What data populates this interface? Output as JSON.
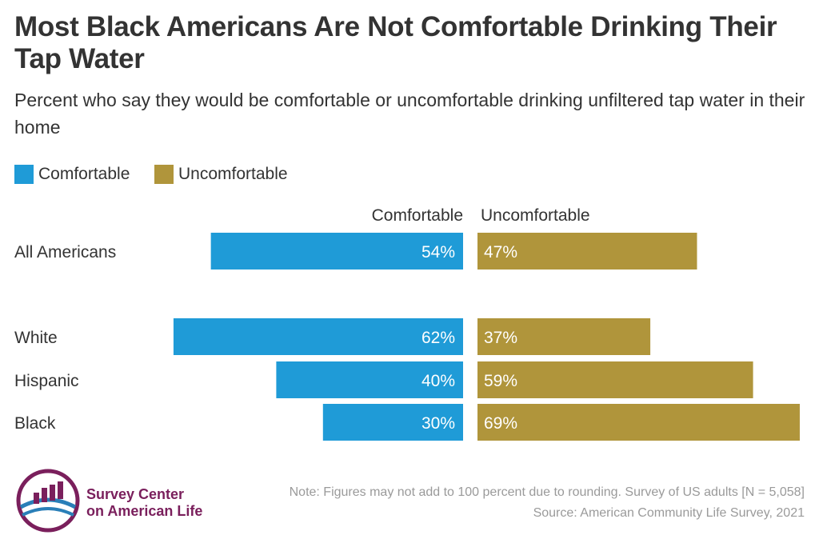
{
  "title": "Most Black Americans Are Not Comfortable Drinking Their Tap Water",
  "subtitle": "Percent who say they would be comfortable or uncomfortable drinking unfiltered tap water in their home",
  "legend": [
    {
      "label": "Comfortable",
      "color": "#1f9bd7"
    },
    {
      "label": "Uncomfortable",
      "color": "#b0953b"
    }
  ],
  "chart_data": {
    "type": "bar",
    "orientation": "horizontal-diverging",
    "column_headers": [
      "Comfortable",
      "Uncomfortable"
    ],
    "categories": [
      "All Americans",
      "White",
      "Hispanic",
      "Black"
    ],
    "series": [
      {
        "name": "Comfortable",
        "values": [
          54,
          62,
          40,
          30
        ],
        "labels": [
          "54%",
          "62%",
          "40%",
          "30%"
        ],
        "color": "#1f9bd7"
      },
      {
        "name": "Uncomfortable",
        "values": [
          47,
          37,
          59,
          69
        ],
        "labels": [
          "47%",
          "37%",
          "59%",
          "69%"
        ],
        "color": "#b0953b"
      }
    ],
    "unit": "%",
    "grid": false,
    "legend_position": "top-left"
  },
  "footer": {
    "logo_line1": "Survey Center",
    "logo_line2": "on American Life",
    "note": "Note: Figures may not add to 100 percent due to rounding. Survey of US adults [N = 5,058]",
    "source": "Source: American Community Life Survey, 2021"
  },
  "colors": {
    "comfortable": "#1f9bd7",
    "uncomfortable": "#b0953b",
    "logo_purple": "#7a1f5c",
    "logo_blue": "#2a7fb8"
  }
}
